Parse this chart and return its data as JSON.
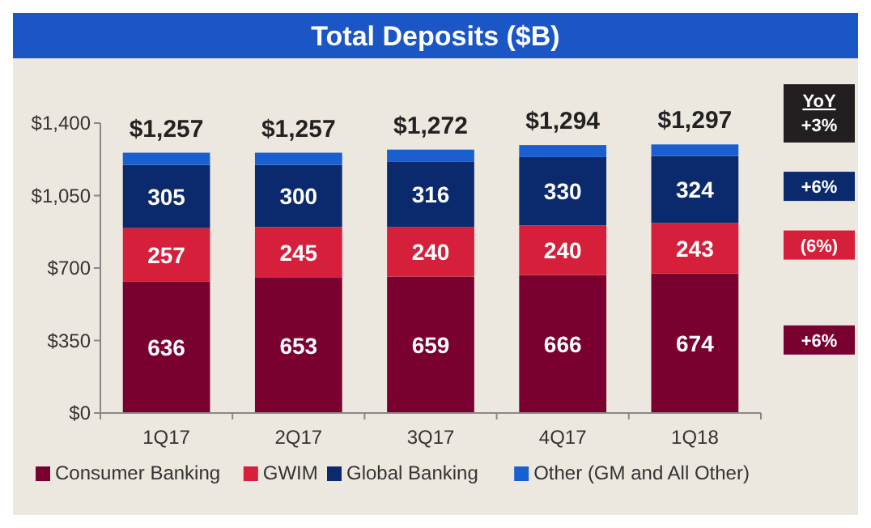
{
  "chart_data": {
    "type": "bar",
    "stacked": true,
    "title": "Total Deposits ($B)",
    "categories": [
      "1Q17",
      "2Q17",
      "3Q17",
      "4Q17",
      "1Q18"
    ],
    "series": [
      {
        "name": "Consumer Banking",
        "color": "#7a0030",
        "values": [
          636,
          653,
          659,
          666,
          674
        ],
        "value_labels": [
          "636",
          "653",
          "659",
          "666",
          "674"
        ]
      },
      {
        "name": "GWIM",
        "color": "#d61f3a",
        "values": [
          257,
          245,
          240,
          240,
          243
        ],
        "value_labels": [
          "257",
          "245",
          "240",
          "240",
          "243"
        ]
      },
      {
        "name": "Global Banking",
        "color": "#0b2a6e",
        "values": [
          305,
          300,
          316,
          330,
          324
        ],
        "value_labels": [
          "305",
          "300",
          "316",
          "330",
          "324"
        ]
      },
      {
        "name": "Other (GM and All Other)",
        "color": "#1a5fcf",
        "values": [
          59,
          59,
          57,
          58,
          56
        ]
      }
    ],
    "totals": [
      "$1,257",
      "$1,257",
      "$1,272",
      "$1,294",
      "$1,297"
    ],
    "ylim": [
      0,
      1400
    ],
    "yticks": [
      {
        "value": 0,
        "label": "$0"
      },
      {
        "value": 350,
        "label": "$350"
      },
      {
        "value": 700,
        "label": "$700"
      },
      {
        "value": 1050,
        "label": "$1,050"
      },
      {
        "value": 1400,
        "label": "$1,400"
      }
    ],
    "grid": false,
    "legend": "bottom",
    "annotations": [
      "YoY",
      "+3%",
      "+6%",
      "(6%)",
      "+6%"
    ]
  }
}
